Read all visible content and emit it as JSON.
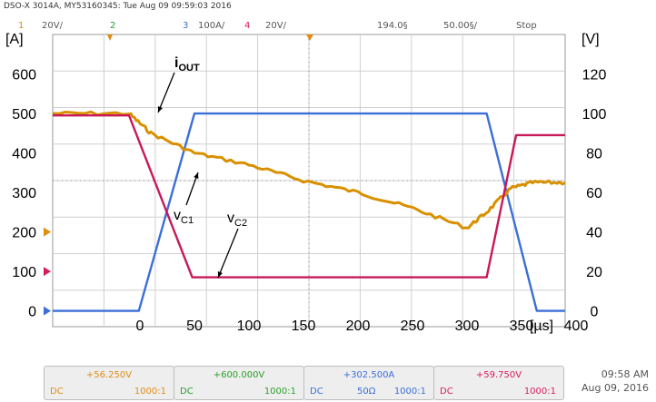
{
  "scope": {
    "header": "DSO-X 3014A, MY53160345: Tue Aug 09 09:59:03 2016",
    "channels": [
      {
        "num": "1",
        "scale": "20V/",
        "color": "#e08c10"
      },
      {
        "num": "2",
        "scale": "",
        "color": "#2aa02a"
      },
      {
        "num": "3",
        "scale": "100A/",
        "color": "#3b6fd6"
      },
      {
        "num": "4",
        "scale": "20V/",
        "color": "#d81b60"
      }
    ],
    "timebase": "194.0§",
    "trigger": "50.00§/",
    "status": "Stop",
    "measure_boxes": [
      {
        "value": "+56.250V",
        "coupling": "DC",
        "impedance": "",
        "probe": "1000:1",
        "color": "#e08c10"
      },
      {
        "value": "+600.000V",
        "coupling": "DC",
        "impedance": "",
        "probe": "1000:1",
        "color": "#2aa02a"
      },
      {
        "value": "+302.500A",
        "coupling": "DC",
        "impedance": "50Ω",
        "probe": "1000:1",
        "color": "#3b6fd6"
      },
      {
        "value": "+59.750V",
        "coupling": "DC",
        "impedance": "",
        "probe": "1000:1",
        "color": "#d81b60"
      }
    ],
    "clock_time": "09:58 AM",
    "clock_date": "Aug 09, 2016"
  },
  "chart_data": {
    "type": "line",
    "xlabel": "[µs]",
    "ylabel_left": "[A]",
    "ylabel_right": "[V]",
    "xlim": [
      -80,
      390
    ],
    "ylim_left": [
      -40,
      700
    ],
    "ylim_right": [
      -8,
      140
    ],
    "x_ticks": [
      0,
      50,
      100,
      150,
      200,
      250,
      300,
      350,
      400
    ],
    "x_tick_labels": [
      "0",
      "50",
      "100",
      "150",
      "200",
      "250",
      "300",
      "350",
      "400"
    ],
    "y_left_ticks": [
      0,
      100,
      200,
      300,
      400,
      500,
      600
    ],
    "y_right_ticks": [
      0,
      20,
      40,
      60,
      80,
      100,
      120
    ],
    "grid": true,
    "series": [
      {
        "name": "iOUT",
        "axis": "left",
        "color": "#3b6fd6",
        "x": [
          -80,
          -1,
          50,
          318,
          364,
          390
        ],
        "y": [
          0,
          0,
          500,
          500,
          0,
          0
        ]
      },
      {
        "name": "vC1",
        "axis": "right",
        "color": "#d89000",
        "x": [
          -80,
          -10,
          10,
          50,
          100,
          150,
          200,
          250,
          300,
          318,
          340,
          360,
          390
        ],
        "y": [
          100,
          100,
          90,
          80,
          74,
          66,
          60,
          52,
          42,
          50,
          62,
          65,
          65
        ]
      },
      {
        "name": "vC2",
        "axis": "right",
        "color": "#c8185a",
        "x": [
          -80,
          -10,
          48,
          318,
          345,
          390
        ],
        "y": [
          99,
          99,
          17,
          17,
          89,
          89
        ]
      }
    ],
    "annotations": [
      {
        "text_main": "i",
        "text_sub": "OUT",
        "bold": true
      },
      {
        "text_main": "v",
        "text_sub": "C1",
        "bold": false
      },
      {
        "text_main": "v",
        "text_sub": "C2",
        "bold": false
      }
    ]
  }
}
